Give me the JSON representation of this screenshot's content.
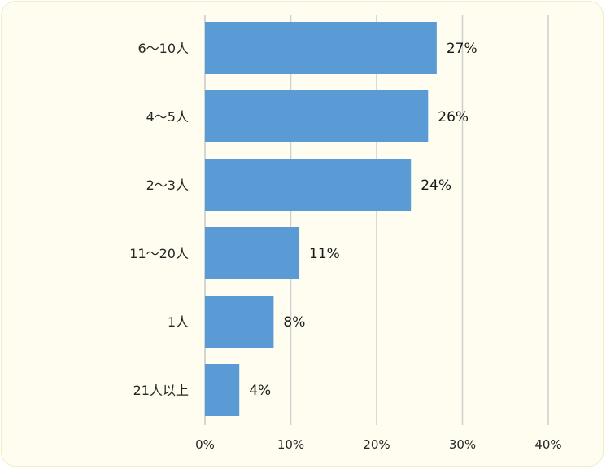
{
  "chart_data": {
    "type": "bar",
    "orientation": "horizontal",
    "categories": [
      "6～10人",
      "4～5人",
      "2～3人",
      "11～20人",
      "1人",
      "21人以上"
    ],
    "values": [
      27,
      26,
      24,
      11,
      8,
      4
    ],
    "data_labels": [
      "27%",
      "26%",
      "24%",
      "11%",
      "8%",
      "4%"
    ],
    "x_ticks": [
      "0%",
      "10%",
      "20%",
      "30%",
      "40%"
    ],
    "xlim": [
      0,
      40
    ],
    "grid": true,
    "legend": "none",
    "colors": {
      "bar": "#5b9bd5",
      "grid": "#cfcfcf",
      "background": "#fefdef"
    }
  }
}
